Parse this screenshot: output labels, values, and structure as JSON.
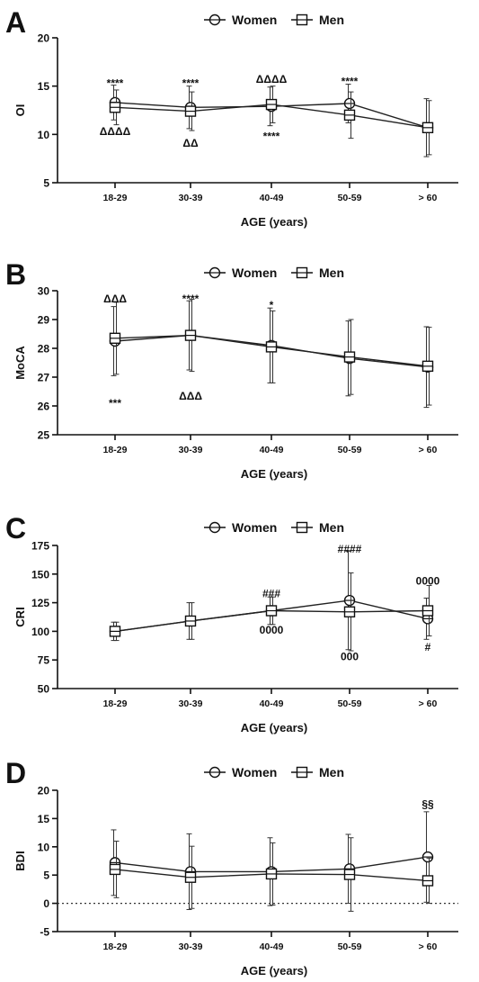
{
  "chart_data": [
    {
      "panel": "A",
      "type": "line",
      "categories": [
        "18-29",
        "30-39",
        "40-49",
        "50-59",
        "> 60"
      ],
      "xlabel": "AGE (years)",
      "ylabel": "OI",
      "ylim": [
        5,
        20
      ],
      "yticks": [
        5,
        10,
        15,
        20
      ],
      "yticks_labels": [
        "5",
        "10",
        "15",
        "20"
      ],
      "legend": {
        "placement": "top-center",
        "women": "Women",
        "men": "Men"
      },
      "series": [
        {
          "name": "Women",
          "marker": "circle",
          "values": [
            13.3,
            12.8,
            12.9,
            13.2,
            10.7
          ],
          "err": [
            1.8,
            2.2,
            2.0,
            2.0,
            3.0
          ]
        },
        {
          "name": "Men",
          "marker": "square",
          "values": [
            12.8,
            12.4,
            13.1,
            12.0,
            10.7
          ],
          "err": [
            1.8,
            2.0,
            1.9,
            2.4,
            2.8
          ]
        }
      ],
      "annotations": [
        {
          "x": "18-29",
          "y": 15.3,
          "text": "****"
        },
        {
          "x": "18-29",
          "y": 10.3,
          "text": "ΔΔΔΔ"
        },
        {
          "x": "30-39",
          "y": 15.3,
          "text": "****"
        },
        {
          "x": "30-39",
          "y": 9.1,
          "text": "ΔΔ"
        },
        {
          "x": "40-49",
          "y": 15.7,
          "text": "ΔΔΔΔ"
        },
        {
          "x": "40-49",
          "y": 9.8,
          "text": "****"
        },
        {
          "x": "50-59",
          "y": 15.5,
          "text": "****"
        }
      ],
      "grid": false,
      "zero_line": false
    },
    {
      "panel": "B",
      "type": "line",
      "categories": [
        "18-29",
        "30-39",
        "40-49",
        "50-59",
        "> 60"
      ],
      "xlabel": "AGE (years)",
      "ylabel": "MoCA",
      "ylim": [
        25,
        30
      ],
      "yticks": [
        25,
        26,
        27,
        28,
        29,
        30
      ],
      "yticks_labels": [
        "25",
        "26",
        "27",
        "28",
        "29",
        "30"
      ],
      "legend": {
        "placement": "top-center",
        "women": "Women",
        "men": "Men"
      },
      "series": [
        {
          "name": "Women",
          "marker": "circle",
          "values": [
            28.25,
            28.45,
            28.1,
            27.65,
            27.35
          ],
          "err": [
            1.2,
            1.2,
            1.3,
            1.3,
            1.4
          ]
        },
        {
          "name": "Men",
          "marker": "square",
          "values": [
            28.35,
            28.45,
            28.05,
            27.7,
            27.38
          ],
          "err": [
            1.25,
            1.25,
            1.25,
            1.3,
            1.35
          ]
        }
      ],
      "annotations": [
        {
          "x": "18-29",
          "y": 29.72,
          "text": "ΔΔΔ"
        },
        {
          "x": "18-29",
          "y": 26.1,
          "text": "***"
        },
        {
          "x": "30-39",
          "y": 29.72,
          "text": "****"
        },
        {
          "x": "30-39",
          "y": 26.35,
          "text": "ΔΔΔ"
        },
        {
          "x": "40-49",
          "y": 29.5,
          "text": "*"
        }
      ],
      "grid": false,
      "zero_line": false
    },
    {
      "panel": "C",
      "type": "line",
      "categories": [
        "18-29",
        "30-39",
        "40-49",
        "50-59",
        "> 60"
      ],
      "xlabel": "AGE (years)",
      "ylabel": "CRI",
      "ylim": [
        50,
        175
      ],
      "yticks": [
        50,
        75,
        100,
        125,
        150,
        175
      ],
      "yticks_labels": [
        "50",
        "75",
        "100",
        "125",
        "150",
        "175"
      ],
      "legend": {
        "placement": "top-center",
        "women": "Women",
        "men": "Men"
      },
      "series": [
        {
          "name": "Women",
          "marker": "circle",
          "values": [
            100,
            109,
            118,
            127,
            111
          ],
          "err": [
            8,
            16,
            12,
            43,
            18
          ]
        },
        {
          "name": "Men",
          "marker": "square",
          "values": [
            100,
            109,
            118,
            117,
            118
          ],
          "err": [
            8,
            16,
            12,
            34,
            22
          ]
        }
      ],
      "annotations": [
        {
          "x": "40-49",
          "y": 133,
          "text": "###"
        },
        {
          "x": "40-49",
          "y": 101,
          "text": "0000"
        },
        {
          "x": "50-59",
          "y": 172,
          "text": "####"
        },
        {
          "x": "50-59",
          "y": 78,
          "text": "000"
        },
        {
          "x": "> 60",
          "y": 144,
          "text": "0000"
        },
        {
          "x": "> 60",
          "y": 86,
          "text": "#"
        }
      ],
      "grid": false,
      "zero_line": false
    },
    {
      "panel": "D",
      "type": "line",
      "categories": [
        "18-29",
        "30-39",
        "40-49",
        "50-59",
        "> 60"
      ],
      "xlabel": "AGE (years)",
      "ylabel": "BDI",
      "ylim": [
        -5,
        20
      ],
      "yticks": [
        -5,
        0,
        5,
        10,
        15,
        20
      ],
      "yticks_labels": [
        "-5",
        "0",
        "5",
        "10",
        "15",
        "20"
      ],
      "legend": {
        "placement": "top-center",
        "women": "Women",
        "men": "Men"
      },
      "series": [
        {
          "name": "Women",
          "marker": "circle",
          "values": [
            7.2,
            5.6,
            5.6,
            6.1,
            8.2
          ],
          "err": [
            5.8,
            6.7,
            6.0,
            6.1,
            8.0
          ]
        },
        {
          "name": "Men",
          "marker": "square",
          "values": [
            6.0,
            4.6,
            5.2,
            5.1,
            4.0
          ],
          "err": [
            5.0,
            5.5,
            5.5,
            6.5,
            4.0
          ]
        }
      ],
      "annotations": [
        {
          "x": "> 60",
          "y": 17.5,
          "text": "§§"
        }
      ],
      "grid": false,
      "zero_line": true
    }
  ]
}
